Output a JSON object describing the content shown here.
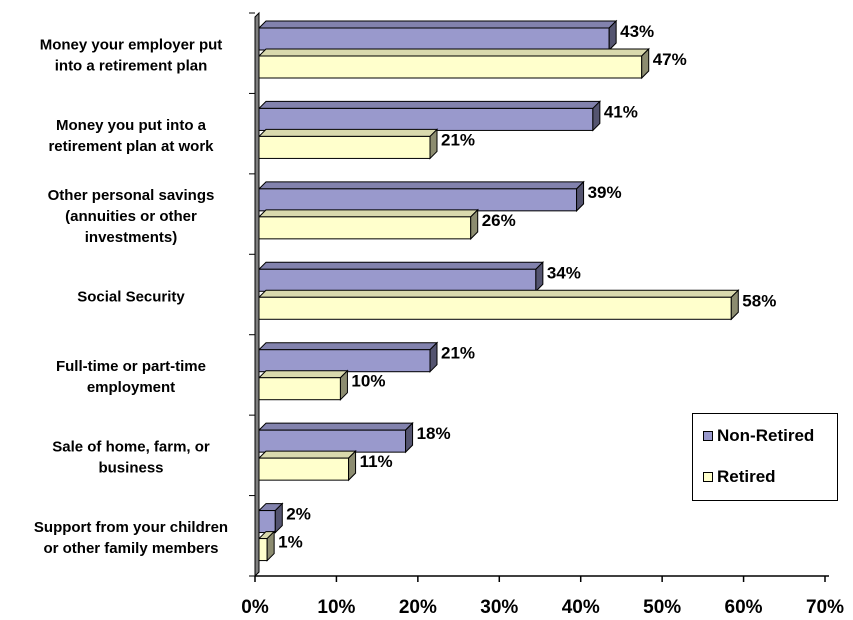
{
  "chart_data": {
    "type": "bar",
    "orientation": "horizontal",
    "categories": [
      [
        "Money your employer put",
        "into a retirement plan"
      ],
      [
        "Money you put into a",
        "retirement plan at work"
      ],
      [
        "Other personal savings",
        "(annuities or other",
        "investments)"
      ],
      [
        "Social Security"
      ],
      [
        "Full-time or part-time",
        "employment"
      ],
      [
        "Sale of home, farm, or",
        "business"
      ],
      [
        "Support from your children",
        "or other family members"
      ]
    ],
    "series": [
      {
        "name": "Non-Retired",
        "color": "#9999cc",
        "values": [
          43,
          41,
          39,
          34,
          21,
          18,
          2
        ],
        "labels": [
          "43%",
          "41%",
          "39%",
          "34%",
          "21%",
          "18%",
          "2%"
        ]
      },
      {
        "name": "Retired",
        "color": "#ffffcc",
        "values": [
          47,
          21,
          26,
          58,
          10,
          11,
          1
        ],
        "labels": [
          "47%",
          "21%",
          "26%",
          "58%",
          "10%",
          "11%",
          "1%"
        ]
      }
    ],
    "xlim": [
      0,
      70
    ],
    "xticks": [
      "0%",
      "10%",
      "20%",
      "30%",
      "40%",
      "50%",
      "60%",
      "70%"
    ],
    "legend_position": "right",
    "grid": false
  },
  "legend": {
    "items": [
      {
        "label": "Non-Retired"
      },
      {
        "label": "Retired"
      }
    ]
  }
}
